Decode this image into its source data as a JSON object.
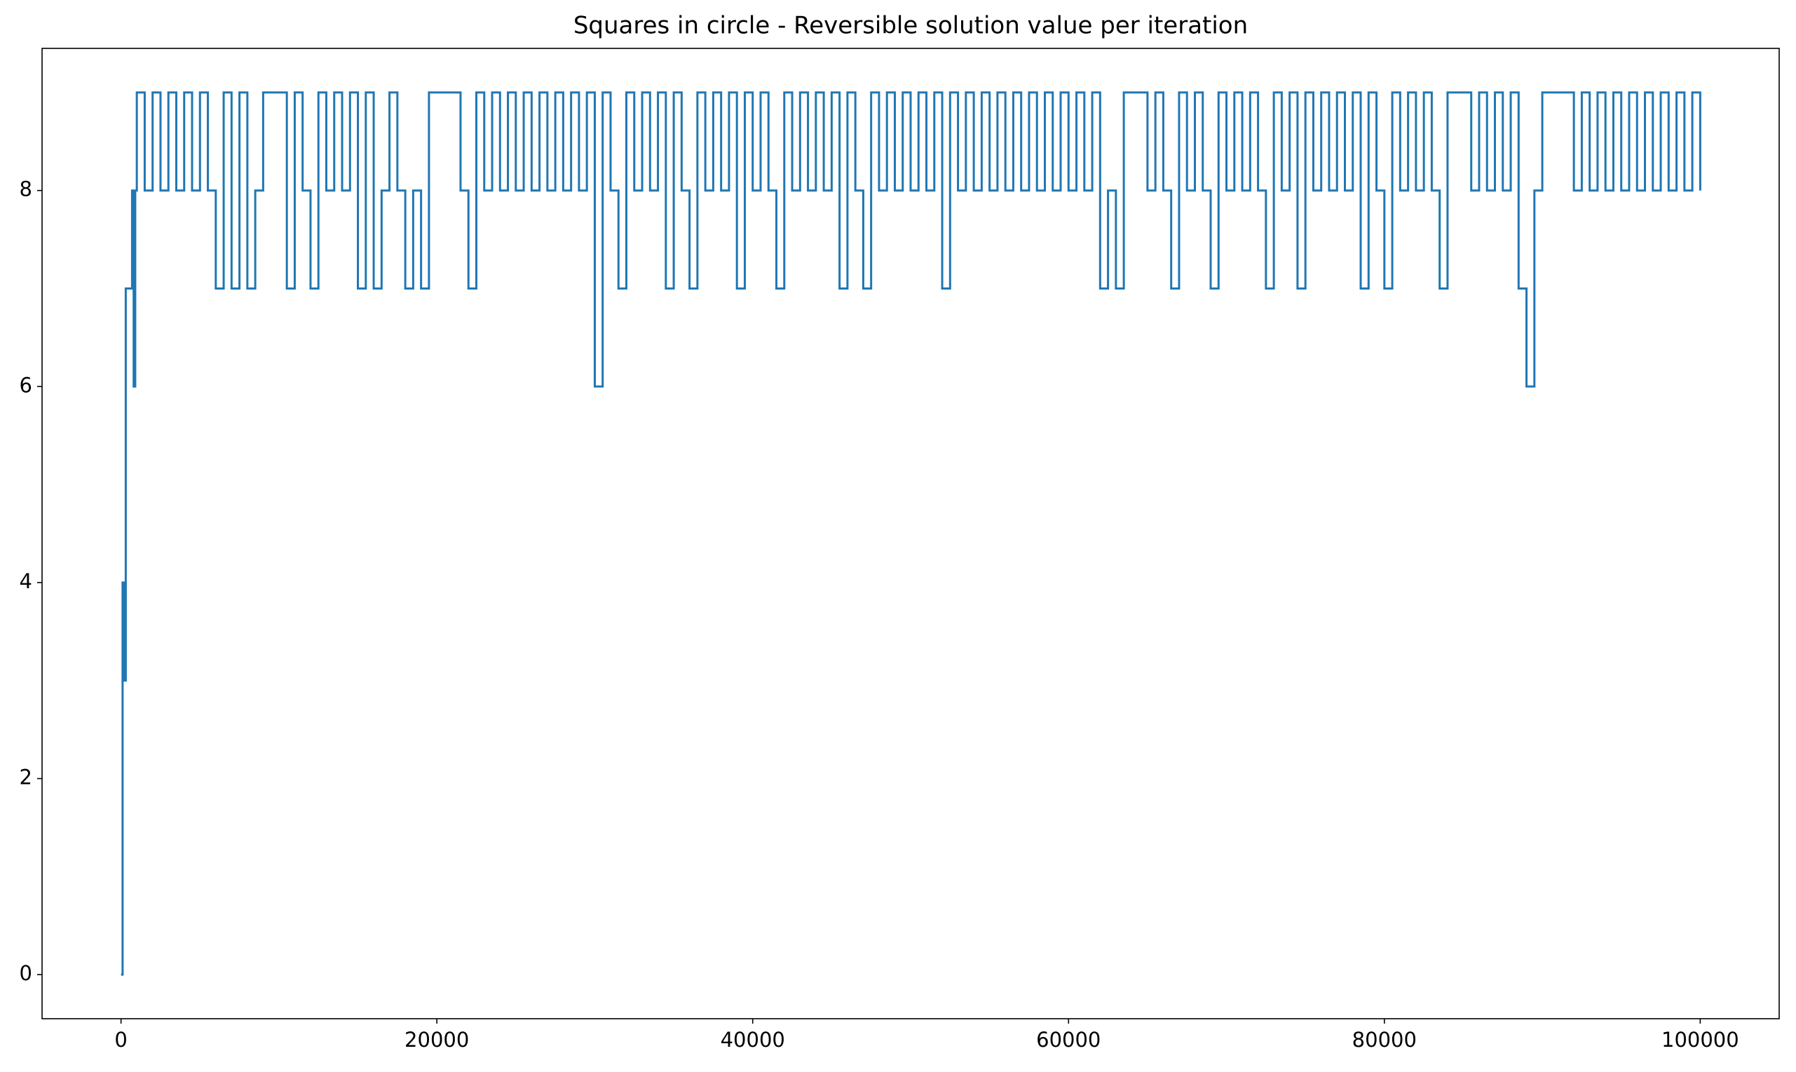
{
  "chart_data": {
    "type": "line",
    "title": "Squares in circle - Reversible solution value per iteration",
    "drawstyle": "steps-post",
    "color": "#1f77b4",
    "grid": false,
    "xlim": [
      -5000,
      105000
    ],
    "ylim": [
      -0.45,
      9.45
    ],
    "xticks": [
      0,
      20000,
      40000,
      60000,
      80000,
      100000
    ],
    "yticks": [
      0,
      2,
      4,
      6,
      8
    ],
    "x": [
      0,
      100,
      200,
      300,
      700,
      800,
      900,
      1000,
      1500,
      2000,
      2500,
      3000,
      3500,
      4000,
      4500,
      5000,
      5500,
      6000,
      6500,
      7000,
      7500,
      8000,
      8500,
      9000,
      9500,
      10000,
      10500,
      11000,
      11500,
      12000,
      12500,
      13000,
      13500,
      14000,
      14500,
      15000,
      15500,
      16000,
      16500,
      17000,
      17500,
      18000,
      18500,
      19000,
      19500,
      20000,
      20500,
      21000,
      21500,
      22000,
      22500,
      23000,
      23500,
      24000,
      24500,
      25000,
      25500,
      26000,
      26500,
      27000,
      27500,
      28000,
      28500,
      29000,
      29500,
      30000,
      30500,
      31000,
      31500,
      32000,
      32500,
      33000,
      33500,
      34000,
      34500,
      35000,
      35500,
      36000,
      36500,
      37000,
      37500,
      38000,
      38500,
      39000,
      39500,
      40000,
      40500,
      41000,
      41500,
      42000,
      42500,
      43000,
      43500,
      44000,
      44500,
      45000,
      45500,
      46000,
      46500,
      47000,
      47500,
      48000,
      48500,
      49000,
      49500,
      50000,
      50500,
      51000,
      51500,
      52000,
      52500,
      53000,
      53500,
      54000,
      54500,
      55000,
      55500,
      56000,
      56500,
      57000,
      57500,
      58000,
      58500,
      59000,
      59500,
      60000,
      60500,
      61000,
      61500,
      62000,
      62500,
      63000,
      63500,
      64000,
      64500,
      65000,
      65500,
      66000,
      66500,
      67000,
      67500,
      68000,
      68500,
      69000,
      69500,
      70000,
      70500,
      71000,
      71500,
      72000,
      72500,
      73000,
      73500,
      74000,
      74500,
      75000,
      75500,
      76000,
      76500,
      77000,
      77500,
      78000,
      78500,
      79000,
      79500,
      80000,
      80500,
      81000,
      81500,
      82000,
      82500,
      83000,
      83500,
      84000,
      84500,
      85000,
      85500,
      86000,
      86500,
      87000,
      87500,
      88000,
      88500,
      89000,
      89500,
      90000,
      90500,
      91000,
      91500,
      92000,
      92500,
      93000,
      93500,
      94000,
      94500,
      95000,
      95500,
      96000,
      96500,
      97000,
      97500,
      98000,
      98500,
      99000,
      99500,
      100000
    ],
    "values": [
      0,
      4,
      3,
      7,
      8,
      6,
      8,
      9,
      8,
      9,
      8,
      9,
      8,
      9,
      8,
      9,
      8,
      7,
      9,
      7,
      9,
      7,
      8,
      9,
      9,
      9,
      7,
      9,
      8,
      7,
      9,
      8,
      9,
      8,
      9,
      7,
      9,
      7,
      8,
      9,
      8,
      7,
      8,
      7,
      9,
      9,
      9,
      9,
      8,
      7,
      9,
      8,
      9,
      8,
      9,
      8,
      9,
      8,
      9,
      8,
      9,
      8,
      9,
      8,
      9,
      6,
      9,
      8,
      7,
      9,
      8,
      9,
      8,
      9,
      7,
      9,
      8,
      7,
      9,
      8,
      9,
      8,
      9,
      7,
      9,
      8,
      9,
      8,
      7,
      9,
      8,
      9,
      8,
      9,
      8,
      9,
      7,
      9,
      8,
      7,
      9,
      8,
      9,
      8,
      9,
      8,
      9,
      8,
      9,
      7,
      9,
      8,
      9,
      8,
      9,
      8,
      9,
      8,
      9,
      8,
      9,
      8,
      9,
      8,
      9,
      8,
      9,
      8,
      9,
      7,
      8,
      7,
      9,
      9,
      9,
      8,
      9,
      8,
      7,
      9,
      8,
      9,
      8,
      7,
      9,
      8,
      9,
      8,
      9,
      8,
      7,
      9,
      8,
      9,
      7,
      9,
      8,
      9,
      8,
      9,
      8,
      9,
      7,
      9,
      8,
      7,
      9,
      8,
      9,
      8,
      9,
      8,
      7,
      9,
      9,
      9,
      8,
      9,
      8,
      9,
      8,
      9,
      7,
      6,
      8,
      9,
      9,
      9,
      9,
      8,
      9,
      8,
      9,
      8,
      9,
      8,
      9,
      8,
      9,
      8,
      9,
      8,
      9,
      8,
      9,
      8
    ]
  }
}
